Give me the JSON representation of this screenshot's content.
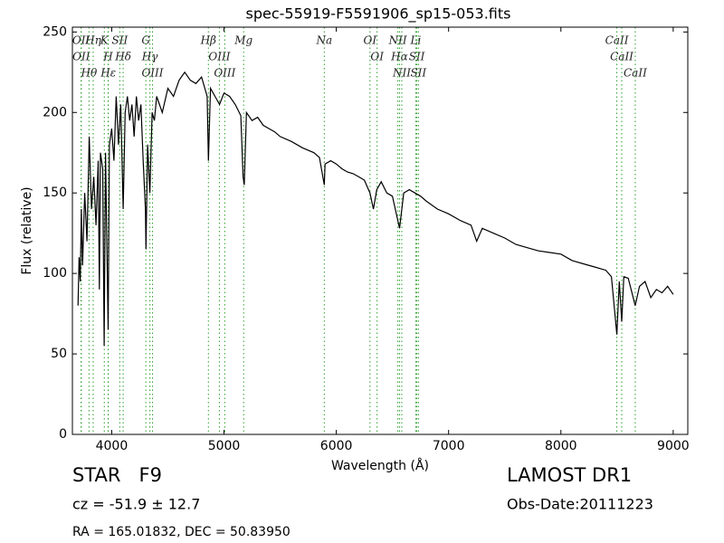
{
  "chart_data": {
    "type": "line",
    "title": "spec-55919-F5591906_sp15-053.fits",
    "x_label": "Wavelength (Å)",
    "y_label": "Flux (relative)",
    "x": [
      3700,
      3710,
      3720,
      3730,
      3740,
      3760,
      3780,
      3800,
      3820,
      3840,
      3860,
      3880,
      3890,
      3900,
      3920,
      3933,
      3945,
      3968,
      3980,
      4000,
      4020,
      4040,
      4060,
      4080,
      4102,
      4120,
      4140,
      4160,
      4180,
      4200,
      4220,
      4240,
      4260,
      4280,
      4300,
      4305,
      4320,
      4340,
      4360,
      4380,
      4400,
      4450,
      4500,
      4550,
      4600,
      4650,
      4700,
      4750,
      4800,
      4850,
      4861,
      4880,
      4920,
      4960,
      5000,
      5050,
      5100,
      5150,
      5170,
      5180,
      5200,
      5250,
      5300,
      5350,
      5400,
      5450,
      5500,
      5600,
      5700,
      5800,
      5850,
      5893,
      5900,
      5950,
      6000,
      6050,
      6100,
      6150,
      6200,
      6250,
      6300,
      6330,
      6360,
      6400,
      6450,
      6500,
      6563,
      6600,
      6650,
      6700,
      6750,
      6800,
      6900,
      7000,
      7100,
      7200,
      7250,
      7300,
      7400,
      7500,
      7600,
      7700,
      7800,
      7900,
      8000,
      8100,
      8200,
      8300,
      8400,
      8450,
      8498,
      8520,
      8542,
      8560,
      8600,
      8662,
      8700,
      8750,
      8800,
      8850,
      8900,
      8950,
      9000
    ],
    "series": [
      {
        "color": "#000000",
        "values": [
          80,
          110,
          95,
          140,
          105,
          150,
          120,
          185,
          140,
          160,
          130,
          170,
          90,
          175,
          165,
          55,
          175,
          65,
          180,
          190,
          170,
          210,
          180,
          205,
          140,
          200,
          210,
          195,
          205,
          185,
          210,
          195,
          205,
          170,
          140,
          115,
          180,
          150,
          200,
          195,
          210,
          200,
          215,
          210,
          220,
          225,
          220,
          218,
          222,
          210,
          170,
          215,
          210,
          205,
          212,
          210,
          205,
          198,
          160,
          155,
          200,
          195,
          197,
          192,
          190,
          188,
          185,
          182,
          178,
          175,
          172,
          155,
          168,
          170,
          168,
          165,
          163,
          162,
          160,
          158,
          150,
          140,
          152,
          157,
          150,
          148,
          128,
          150,
          152,
          150,
          148,
          145,
          140,
          137,
          133,
          130,
          120,
          128,
          125,
          122,
          118,
          116,
          114,
          113,
          112,
          108,
          106,
          104,
          102,
          98,
          62,
          95,
          70,
          98,
          97,
          80,
          92,
          95,
          85,
          90,
          88,
          92,
          87
        ]
      }
    ],
    "xlim": [
      3650,
      9130
    ],
    "ylim": [
      0,
      253
    ],
    "xticks": [
      4000,
      5000,
      6000,
      7000,
      8000,
      9000
    ],
    "yticks": [
      0,
      50,
      100,
      150,
      200,
      250
    ],
    "line_color": "#2ca02c",
    "lines": [
      {
        "label": "OII",
        "x": 3727
      },
      {
        "label": "OII",
        "x": 3729
      },
      {
        "label": "Hθ",
        "x": 3798
      },
      {
        "label": "Hη",
        "x": 3835
      },
      {
        "label": "K",
        "x": 3934
      },
      {
        "label": "H",
        "x": 3968
      },
      {
        "label": "Hε",
        "x": 3970
      },
      {
        "label": "SII",
        "x": 4072
      },
      {
        "label": "Hδ",
        "x": 4102
      },
      {
        "label": "G",
        "x": 4304
      },
      {
        "label": "Hγ",
        "x": 4340
      },
      {
        "label": "OIII",
        "x": 4363
      },
      {
        "label": "Hβ",
        "x": 4861
      },
      {
        "label": "OIII",
        "x": 4959
      },
      {
        "label": "OIII",
        "x": 5007
      },
      {
        "label": "Mg",
        "x": 5175
      },
      {
        "label": "Na",
        "x": 5893
      },
      {
        "label": "OI",
        "x": 6300
      },
      {
        "label": "OI",
        "x": 6363
      },
      {
        "label": "NII",
        "x": 6548
      },
      {
        "label": "Hα",
        "x": 6563
      },
      {
        "label": "NII",
        "x": 6583
      },
      {
        "label": "Li",
        "x": 6708
      },
      {
        "label": "SII",
        "x": 6717
      },
      {
        "label": "SII",
        "x": 6731
      },
      {
        "label": "CaII",
        "x": 8498
      },
      {
        "label": "CaII",
        "x": 8542
      },
      {
        "label": "CaII",
        "x": 8662
      }
    ],
    "footer": {
      "object": "STAR   F9",
      "survey": "LAMOST DR1",
      "cz": "cz = -51.9 ± 12.7",
      "date": "Obs-Date:20111223",
      "coords": "RA = 165.01832, DEC = 50.83950"
    }
  }
}
